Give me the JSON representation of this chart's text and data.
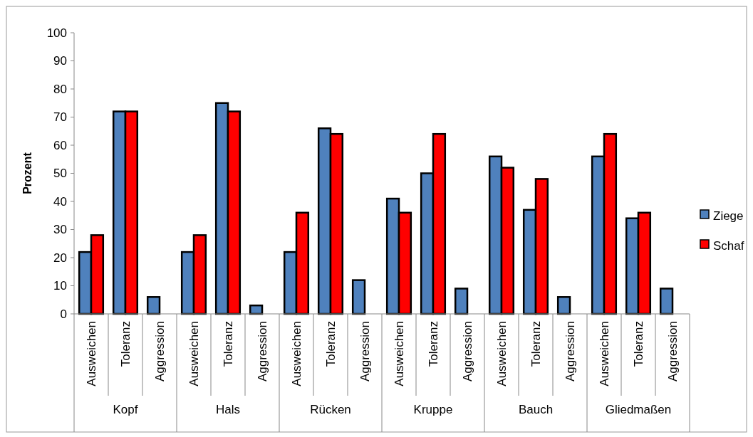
{
  "chart_data": {
    "type": "bar",
    "ylabel": "Prozent",
    "categories": [
      "Ausweichen",
      "Toleranz",
      "Aggression",
      "Ausweichen",
      "Toleranz",
      "Aggression",
      "Ausweichen",
      "Toleranz",
      "Aggression",
      "Ausweichen",
      "Toleranz",
      "Aggression",
      "Ausweichen",
      "Toleranz",
      "Aggression",
      "Ausweichen",
      "Toleranz",
      "Aggression"
    ],
    "annotations": [
      "Kopf",
      "Hals",
      "Rücken",
      "Kruppe",
      "Bauch",
      "Gliedmaßen"
    ],
    "series": [
      {
        "name": "Ziege",
        "color": "#4f81bd",
        "values": [
          22,
          72,
          6,
          22,
          75,
          3,
          22,
          66,
          12,
          41,
          50,
          9,
          56,
          37,
          6,
          56,
          34,
          9
        ]
      },
      {
        "name": "Schaf",
        "color": "#ff0000",
        "values": [
          28,
          72,
          0,
          28,
          72,
          0,
          36,
          64,
          0,
          36,
          64,
          0,
          52,
          48,
          0,
          64,
          36,
          0
        ]
      }
    ],
    "ylim": [
      0,
      100
    ],
    "yticks": [
      0,
      10,
      20,
      30,
      40,
      50,
      60,
      70,
      80,
      90,
      100
    ],
    "legend": "right"
  }
}
